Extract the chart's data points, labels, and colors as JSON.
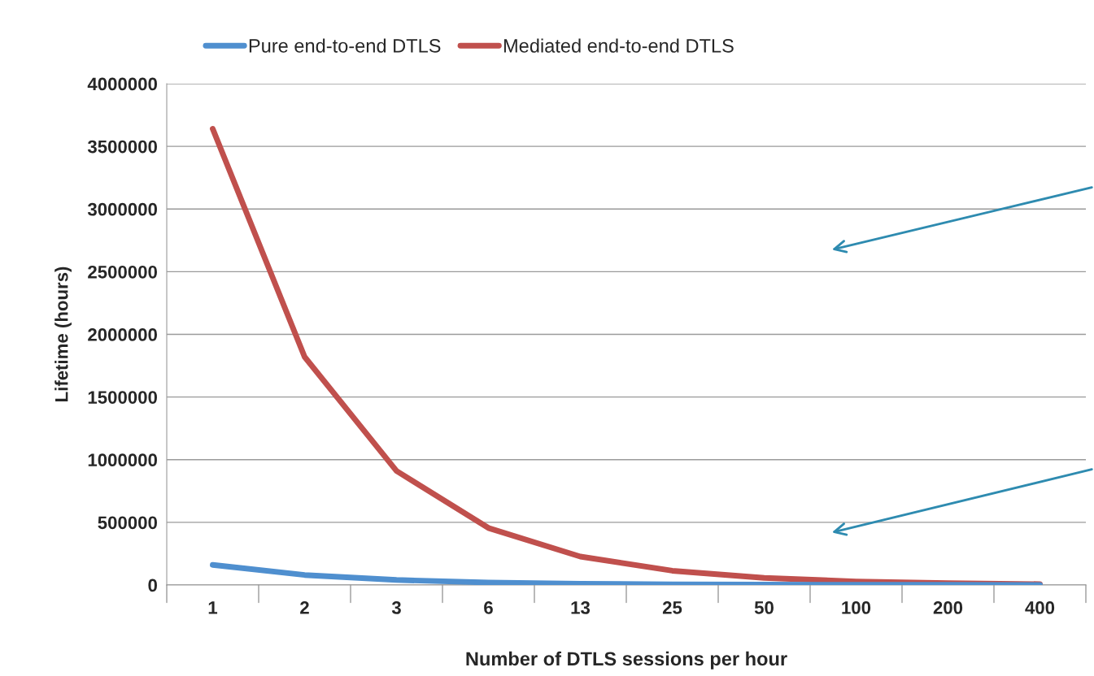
{
  "chart_data": {
    "type": "line",
    "xlabel": "Number of DTLS sessions per hour",
    "ylabel": "Lifetime (hours)",
    "categories": [
      "1",
      "2",
      "3",
      "6",
      "13",
      "25",
      "50",
      "100",
      "200",
      "400"
    ],
    "series": [
      {
        "name": "Pure end-to-end DTLS",
        "color": "#4f8fcf",
        "values": [
          160000,
          80000,
          40000,
          20000,
          10000,
          5000,
          3000,
          1000,
          1000,
          0
        ]
      },
      {
        "name": "Mediated end-to-end DTLS",
        "color": "#c0504d",
        "values": [
          3640000,
          1820000,
          910000,
          455000,
          227000,
          114000,
          57000,
          28000,
          14000,
          7000
        ]
      }
    ],
    "ylim": [
      0,
      4000000
    ],
    "yticks": [
      0,
      500000,
      1000000,
      1500000,
      2000000,
      2500000,
      3000000,
      3500000,
      4000000
    ],
    "grid": "y",
    "legend": "top",
    "marker": "none",
    "line_style": "solid"
  }
}
